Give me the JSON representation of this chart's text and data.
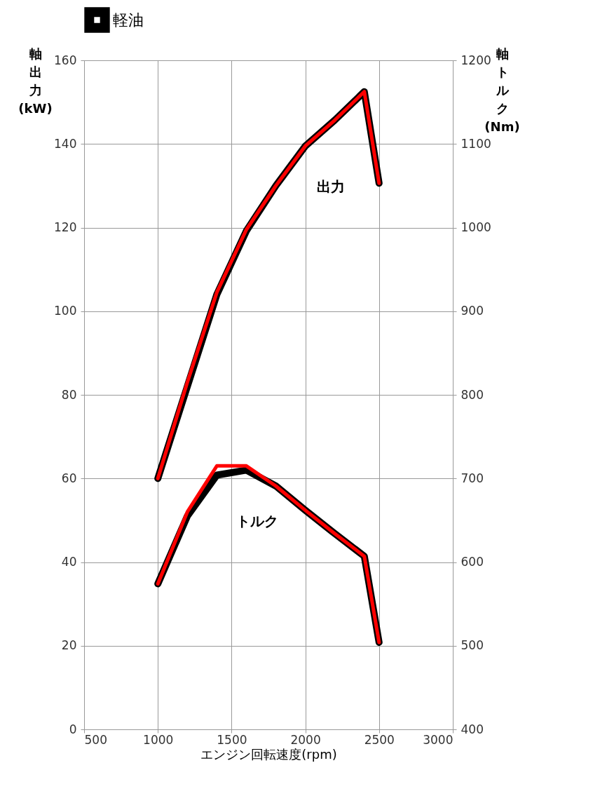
{
  "chart_data": {
    "type": "line",
    "xlabel": "エンジン回転速度(rpm)",
    "ylabel": "軸出力(kW)",
    "y2label": "軸トルク(Nm)",
    "x": [
      1000,
      1200,
      1400,
      1600,
      1800,
      2000,
      2200,
      2400,
      2500
    ],
    "xlim": [
      500,
      3000
    ],
    "xticks": [
      500,
      1000,
      1500,
      2000,
      2500,
      3000
    ],
    "ylim": [
      0,
      160
    ],
    "yticks": [
      0,
      20,
      40,
      60,
      80,
      100,
      120,
      140,
      160
    ],
    "y2lim": [
      400,
      1200
    ],
    "y2ticks": [
      400,
      500,
      600,
      700,
      800,
      900,
      1000,
      1100,
      1200
    ],
    "grid": true,
    "legend": "top",
    "marker": "none",
    "line_style": "solid",
    "series": [
      {
        "name": "軽油",
        "color": "#000000",
        "values": [
          60,
          82,
          104,
          119.2,
          130,
          139.5,
          145.7,
          152.5,
          130.6
        ]
      },
      {
        "color": "#ff0000",
        "values": [
          60,
          83,
          104.5,
          119.5,
          130,
          139.5,
          145.7,
          152.5,
          130.6
        ]
      },
      {
        "color": "#000000",
        "axis": "y2",
        "values": [
          574,
          655,
          704,
          710,
          691,
          662,
          634,
          607,
          504
        ]
      },
      {
        "color": "#ff0000",
        "axis": "y2",
        "values": [
          574,
          660,
          715,
          715,
          691,
          662,
          634,
          607,
          504
        ]
      }
    ],
    "annotations": [
      "出力",
      "トルク"
    ]
  }
}
